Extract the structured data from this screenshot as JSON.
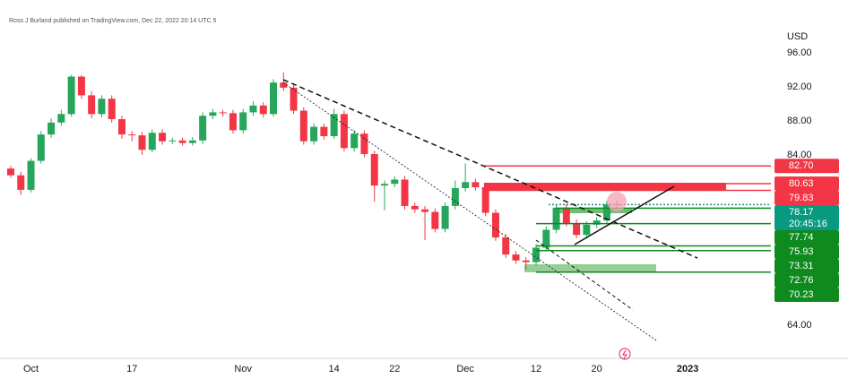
{
  "header": "Ross J Burland published on TradingView.com, Dec 22, 2022 20:14 UTC 5",
  "chart_data": {
    "type": "candlestick",
    "currency": "USD",
    "categories": [
      null,
      null,
      "Oct",
      null,
      null,
      null,
      null,
      null,
      null,
      null,
      null,
      null,
      "17",
      null,
      null,
      null,
      null,
      null,
      null,
      null,
      null,
      null,
      null,
      "Nov",
      null,
      null,
      null,
      null,
      null,
      null,
      null,
      null,
      "14",
      null,
      null,
      null,
      null,
      null,
      "22",
      null,
      null,
      null,
      null,
      null,
      null,
      "Dec",
      null,
      null,
      null,
      null,
      null,
      null,
      "12",
      null,
      null,
      null,
      null,
      null,
      "20",
      null,
      null,
      null,
      null,
      null,
      null,
      null,
      null,
      "2023"
    ],
    "open": [
      82.4,
      81.6,
      79.9,
      83.3,
      86.4,
      87.8,
      88.8,
      93.2,
      91.0,
      88.8,
      90.6,
      88.2,
      86.4,
      86.3,
      84.6,
      86.6,
      85.6,
      85.7,
      85.4,
      85.7,
      88.6,
      89.0,
      88.9,
      86.9,
      89.0,
      89.8,
      88.8,
      92.5,
      91.9,
      89.2,
      85.6,
      87.3,
      86.2,
      88.8,
      84.8,
      86.5,
      84.1,
      80.4,
      80.6,
      81.1,
      78.0,
      77.6,
      77.3,
      75.3,
      78.0,
      80.1,
      80.8,
      80.2,
      77.2,
      74.3,
      72.3,
      71.6,
      71.4,
      73.1,
      75.2,
      77.8,
      76.0,
      74.6,
      75.8,
      76.3,
      78.2,
      null,
      null,
      null,
      null,
      null,
      null,
      null
    ],
    "high": [
      82.7,
      82.0,
      83.6,
      86.8,
      88.3,
      89.3,
      93.4,
      93.4,
      91.5,
      91.0,
      91.0,
      88.6,
      86.8,
      86.7,
      87.0,
      87.0,
      86.0,
      86.0,
      86.1,
      89.0,
      89.4,
      89.3,
      89.3,
      89.4,
      90.3,
      90.2,
      92.9,
      93.7,
      92.3,
      89.6,
      87.7,
      87.7,
      89.4,
      89.2,
      86.9,
      86.9,
      84.5,
      81.0,
      81.5,
      81.5,
      78.4,
      78.0,
      77.7,
      78.4,
      81.0,
      83.0,
      81.2,
      80.6,
      77.6,
      74.7,
      72.7,
      72.0,
      73.5,
      75.6,
      78.2,
      78.2,
      76.4,
      76.2,
      76.7,
      78.6,
      78.6,
      null,
      null,
      null,
      null,
      null,
      null,
      null
    ],
    "low": [
      81.3,
      79.3,
      79.6,
      83.0,
      86.0,
      87.4,
      88.5,
      90.6,
      88.3,
      88.4,
      87.8,
      85.9,
      85.6,
      84.0,
      84.3,
      85.2,
      85.3,
      85.1,
      85.1,
      85.3,
      88.2,
      88.5,
      86.5,
      86.5,
      88.6,
      88.4,
      88.5,
      91.5,
      88.8,
      85.2,
      85.2,
      85.8,
      85.9,
      84.4,
      84.4,
      83.7,
      78.5,
      77.5,
      80.2,
      77.6,
      77.2,
      74.0,
      74.9,
      74.9,
      77.6,
      79.7,
      79.8,
      76.8,
      73.9,
      71.9,
      71.2,
      70.5,
      71.0,
      72.7,
      74.8,
      75.6,
      74.2,
      74.2,
      75.4,
      75.9,
      77.8,
      null,
      null,
      null,
      null,
      null,
      null,
      null
    ],
    "close": [
      81.6,
      79.9,
      83.3,
      86.4,
      87.8,
      88.8,
      93.2,
      91.0,
      88.8,
      90.6,
      88.2,
      86.4,
      86.3,
      84.6,
      86.6,
      85.6,
      85.7,
      85.4,
      85.7,
      88.6,
      89.0,
      88.9,
      86.9,
      89.0,
      89.8,
      88.8,
      92.5,
      91.9,
      89.2,
      85.6,
      87.3,
      86.2,
      88.8,
      84.8,
      86.5,
      84.1,
      80.4,
      80.6,
      81.1,
      78.0,
      77.6,
      77.3,
      75.3,
      78.0,
      80.1,
      80.8,
      80.2,
      77.2,
      74.3,
      72.3,
      71.6,
      71.4,
      73.1,
      75.2,
      77.8,
      76.0,
      74.6,
      75.8,
      76.3,
      78.2,
      78.17,
      null,
      null,
      null,
      null,
      null,
      null,
      null
    ],
    "up_color": "#26a65b",
    "down_color": "#f23645",
    "ylim": [
      60.1,
      102.2
    ],
    "yticks": [
      {
        "value": 96,
        "label": "96.00"
      },
      {
        "value": 92,
        "label": "92.00"
      },
      {
        "value": 88,
        "label": "88.00"
      },
      {
        "value": 84,
        "label": "84.00"
      },
      {
        "value": 64,
        "label": "64.00"
      }
    ],
    "levels": [
      {
        "value": 82.7,
        "label": "82.70",
        "color": "#f23645"
      },
      {
        "value": 80.63,
        "label": "80.63",
        "color": "#f23645"
      },
      {
        "value": 79.83,
        "label": "79.83",
        "color": "#f23645"
      },
      {
        "value": 78.17,
        "label": "78.17",
        "color": "#089981",
        "countdown": "20:45:16"
      },
      {
        "value": 77.74,
        "label": "77.74",
        "color": "#0f8a1f"
      },
      {
        "value": 75.93,
        "label": "75.93",
        "color": "#0f8a1f"
      },
      {
        "value": 73.31,
        "label": "73.31",
        "color": "#0f8a1f"
      },
      {
        "value": 72.76,
        "label": "72.76",
        "color": "#0f8a1f"
      },
      {
        "value": 70.23,
        "label": "70.23",
        "color": "#0f8a1f"
      }
    ]
  }
}
